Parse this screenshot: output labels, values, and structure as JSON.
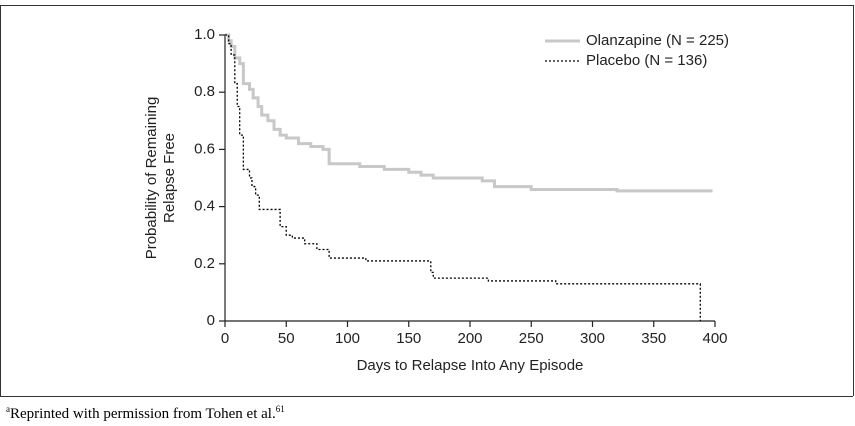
{
  "chart_data": {
    "type": "step",
    "xlabel": "Days to Relapse Into Any Episode",
    "ylabel": [
      "Probability of Remaining",
      "Relapse Free"
    ],
    "xlim": [
      0,
      400
    ],
    "xticks": [
      0,
      50,
      100,
      150,
      200,
      250,
      300,
      350,
      400
    ],
    "ylim": [
      0,
      1
    ],
    "yticks": [
      0,
      {
        "value": 0.2,
        "label": "0.2"
      },
      0.4,
      0.6,
      0.8,
      {
        "value": 1,
        "label": "1.0"
      }
    ],
    "legend": "top-right",
    "series": [
      {
        "name": "Olanzapine (N = 225)",
        "color": "#c8c8c8",
        "line_style": "solid",
        "x": [
          0,
          3,
          5,
          8,
          12,
          15,
          20,
          23,
          27,
          30,
          35,
          40,
          45,
          50,
          60,
          70,
          80,
          85,
          100,
          110,
          130,
          150,
          160,
          170,
          190,
          210,
          220,
          240,
          250,
          300,
          320,
          398
        ],
        "values": [
          1,
          0.98,
          0.96,
          0.92,
          0.9,
          0.83,
          0.81,
          0.78,
          0.75,
          0.72,
          0.7,
          0.67,
          0.65,
          0.64,
          0.62,
          0.61,
          0.6,
          0.55,
          0.55,
          0.54,
          0.53,
          0.52,
          0.51,
          0.5,
          0.5,
          0.49,
          0.47,
          0.47,
          0.46,
          0.46,
          0.455,
          0.455
        ]
      },
      {
        "name": "Placebo (N = 136)",
        "color": "#000000",
        "line_style": "dotted",
        "x": [
          0,
          3,
          5,
          8,
          10,
          12,
          15,
          20,
          22,
          25,
          28,
          40,
          45,
          50,
          55,
          65,
          75,
          85,
          105,
          115,
          150,
          168,
          170,
          210,
          215,
          270,
          388
        ],
        "values": [
          1,
          0.97,
          0.93,
          0.83,
          0.75,
          0.65,
          0.53,
          0.5,
          0.47,
          0.44,
          0.39,
          0.39,
          0.33,
          0.3,
          0.29,
          0.27,
          0.25,
          0.22,
          0.22,
          0.21,
          0.21,
          0.17,
          0.15,
          0.15,
          0.14,
          0.13,
          0
        ]
      }
    ]
  },
  "footnote": {
    "marker": "a",
    "text": "Reprinted with permission from Tohen et al.",
    "ref": "61"
  }
}
